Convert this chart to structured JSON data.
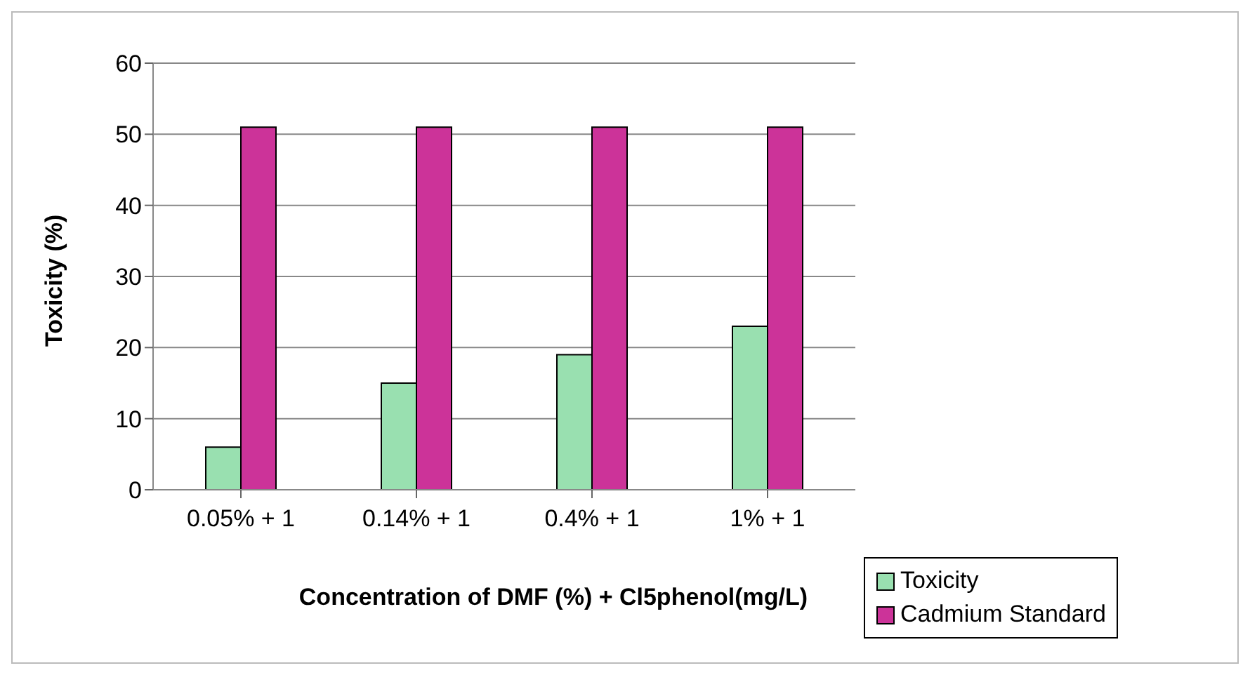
{
  "chart_data": {
    "type": "bar",
    "xlabel": "Concentration of DMF (%) + Cl5phenol(mg/L)",
    "ylabel": "Toxicity (%)",
    "categories": [
      "0.05% + 1",
      "0.14% + 1",
      "0.4% + 1",
      "1% + 1"
    ],
    "series": [
      {
        "name": "Toxicity",
        "color": "#99e0b0",
        "values": [
          6,
          15,
          19,
          23
        ]
      },
      {
        "name": "Cadmium Standard",
        "color": "#cc3399",
        "values": [
          51,
          51,
          51,
          51
        ]
      }
    ],
    "ylim": [
      0,
      60
    ],
    "yticks": [
      0,
      10,
      20,
      30,
      40,
      50,
      60
    ],
    "grid": "y",
    "legend": "bottom right"
  }
}
